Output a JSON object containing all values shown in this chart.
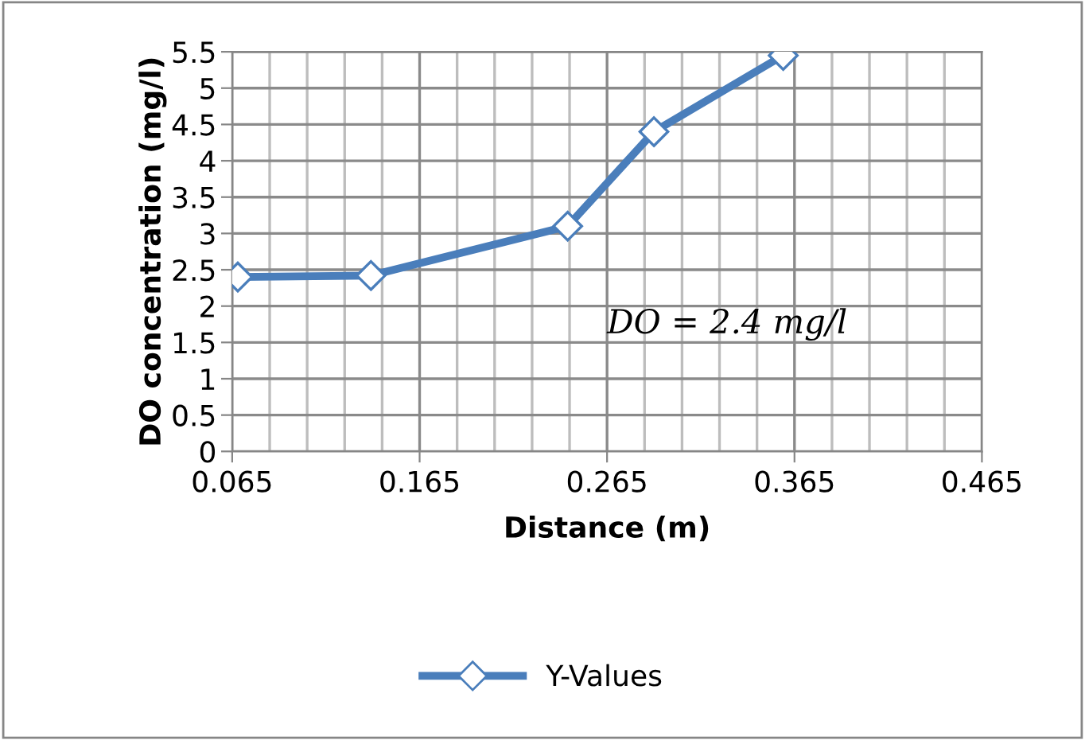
{
  "chart_data": {
    "type": "line",
    "xlabel": "Distance (m)",
    "ylabel": "DO concentration (mg/l)",
    "series": [
      {
        "name": "Y-Values",
        "color": "#4a7ebb",
        "x": [
          0.068,
          0.139,
          0.244,
          0.29,
          0.359
        ],
        "values": [
          2.4,
          2.42,
          3.1,
          4.4,
          5.45
        ]
      }
    ],
    "xlim": [
      0.065,
      0.465
    ],
    "ylim": [
      0,
      5.5
    ],
    "xticks": [
      0.065,
      {
        "value": 0.085,
        "label": null
      },
      {
        "value": 0.105,
        "label": null
      },
      {
        "value": 0.125,
        "label": null
      },
      {
        "value": 0.145,
        "label": null
      },
      0.165,
      {
        "value": 0.185,
        "label": null
      },
      {
        "value": 0.205,
        "label": null
      },
      {
        "value": 0.225,
        "label": null
      },
      {
        "value": 0.245,
        "label": null
      },
      0.265,
      {
        "value": 0.285,
        "label": null
      },
      {
        "value": 0.305,
        "label": null
      },
      {
        "value": 0.325,
        "label": null
      },
      {
        "value": 0.345,
        "label": null
      },
      0.365,
      {
        "value": 0.385,
        "label": null
      },
      {
        "value": 0.405,
        "label": null
      },
      {
        "value": 0.425,
        "label": null
      },
      {
        "value": 0.445,
        "label": null
      },
      0.465
    ],
    "yticks": [
      0,
      0.5,
      1,
      1.5,
      2,
      2.5,
      3,
      3.5,
      4,
      4.5,
      5,
      5.5
    ],
    "annotations": [
      "DO = 2.4 mg/l"
    ],
    "grid": true,
    "legend": "bottom",
    "marker": "diamond",
    "line_style": "solid"
  }
}
